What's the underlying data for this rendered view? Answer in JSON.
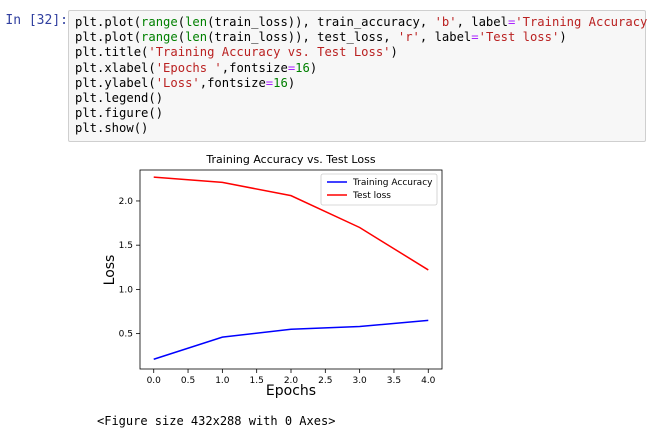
{
  "cell": {
    "prompt": "In [32]:",
    "lines": [
      "plt.plot(range(len(train_loss)), train_accuracy, 'b', label='Training Accuracy')",
      "plt.plot(range(len(train_loss)), test_loss, 'r', label='Test loss')",
      "plt.title('Training Accuracy vs. Test Loss')",
      "plt.xlabel('Epochs ',fontsize=16)",
      "plt.ylabel('Loss',fontsize=16)",
      "plt.legend()",
      "plt.figure()",
      "plt.show()"
    ]
  },
  "output": {
    "figure_note": "<Figure size 432x288 with 0 Axes>"
  },
  "chart_data": {
    "type": "line",
    "title": "Training Accuracy vs. Test Loss",
    "xlabel": "Epochs",
    "ylabel": "Loss",
    "x": [
      0,
      1,
      2,
      3,
      4
    ],
    "xlim": [
      -0.2,
      4.2
    ],
    "ylim": [
      0.1,
      2.35
    ],
    "xticks": [
      "0.0",
      "0.5",
      "1.0",
      "1.5",
      "2.0",
      "2.5",
      "3.0",
      "3.5",
      "4.0"
    ],
    "yticks": [
      "0.5",
      "1.0",
      "1.5",
      "2.0"
    ],
    "grid": false,
    "legend_position": "top-right",
    "series": [
      {
        "name": "Training Accuracy",
        "color": "#0000ff",
        "values": [
          0.21,
          0.46,
          0.55,
          0.58,
          0.65
        ]
      },
      {
        "name": "Test loss",
        "color": "#ff0000",
        "values": [
          2.27,
          2.21,
          2.06,
          1.7,
          1.22
        ]
      }
    ]
  }
}
